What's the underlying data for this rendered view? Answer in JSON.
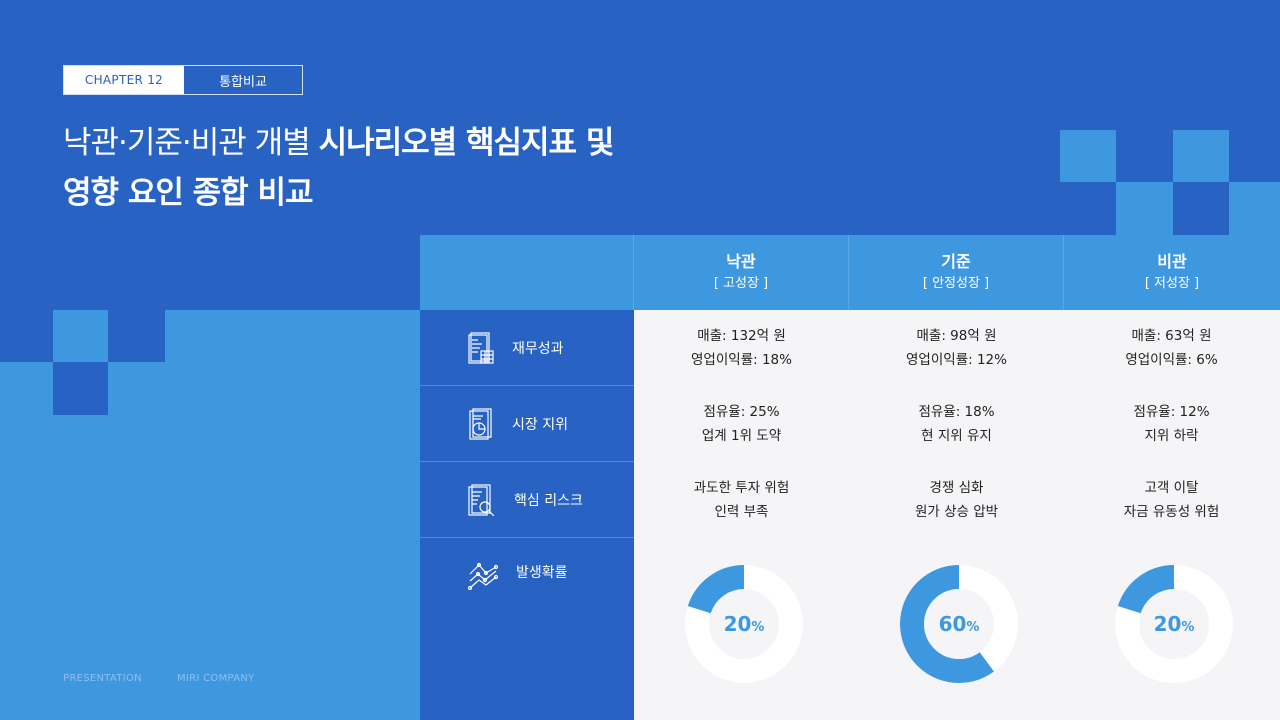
{
  "chapter": {
    "label": "CHAPTER 12",
    "section": "통합비교"
  },
  "title": {
    "light": "낙관·기준·비관 개별 ",
    "bold_line1": "시나리오별 핵심지표 및",
    "line2": "영향 요인 종합 비교"
  },
  "colors": {
    "dark_blue": "#2862C2",
    "light_blue": "#3D98E0",
    "donut_fill": "#3D98E0",
    "cell_bg": "#F5F4F6"
  },
  "columns": [
    {
      "name": "낙관",
      "sub": "[ 고성장 ]"
    },
    {
      "name": "기준",
      "sub": "[ 안정성장 ]"
    },
    {
      "name": "비관",
      "sub": "[ 저성장 ]"
    }
  ],
  "rows": [
    {
      "label": "재무성과",
      "icon": "financial-report-icon",
      "cells": [
        [
          "매출: 132억 원",
          "영업이익률: 18%"
        ],
        [
          "매출: 98억 원",
          "영업이익률: 12%"
        ],
        [
          "매출: 63억 원",
          "영업이익률: 6%"
        ]
      ]
    },
    {
      "label": "시장 지위",
      "icon": "pie-report-icon",
      "cells": [
        [
          "점유율: 25%",
          "업계 1위 도약"
        ],
        [
          "점유율: 18%",
          "현 지위 유지"
        ],
        [
          "점유율: 12%",
          "지위 하락"
        ]
      ]
    },
    {
      "label": "핵심 리스크",
      "icon": "search-document-icon",
      "cells": [
        [
          "과도한 투자 위험",
          "인력 부족"
        ],
        [
          "경쟁 심화",
          "원가 상승 압박"
        ],
        [
          "고객 이탈",
          "자금 유동성 위험"
        ]
      ]
    },
    {
      "label": "발생확률",
      "icon": "line-chart-icon"
    }
  ],
  "probabilities": [
    {
      "value": 20,
      "unit": "%"
    },
    {
      "value": 60,
      "unit": "%"
    },
    {
      "value": 20,
      "unit": "%"
    }
  ],
  "footer": {
    "left": "PRESENTATION",
    "right": "MIRI COMPANY"
  }
}
